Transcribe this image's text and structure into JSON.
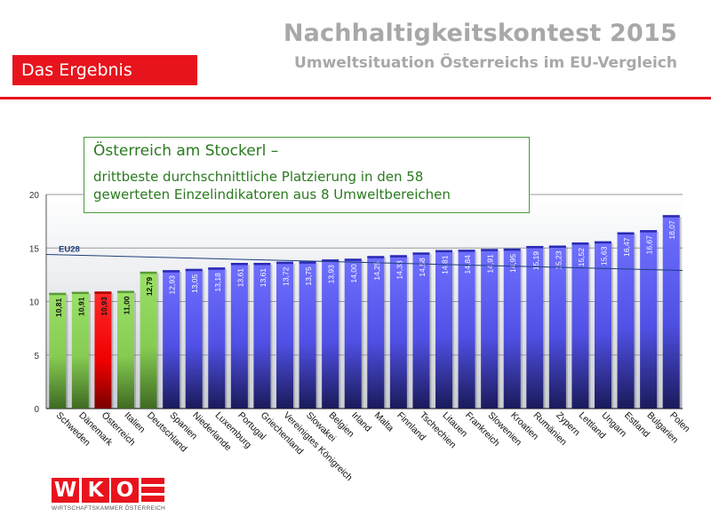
{
  "header": {
    "title": "Nachhaltigkeitskontest 2015",
    "subtitle": "Umweltsituation Österreichs im EU-Vergleich",
    "badge": "Das Ergebnis"
  },
  "callout": {
    "title": "Österreich am Stockerl –",
    "body_line1": "drittbeste durchschnittliche Platzierung in den 58",
    "body_line2": "gewerteten Einzelindikatoren aus 8 Umweltbereichen"
  },
  "logo": {
    "letters": [
      "W",
      "K",
      "O"
    ],
    "caption": "WIRTSCHAFTSKAMMER ÖSTERREICH"
  },
  "colors": {
    "accent_red": "#e8141d",
    "bar_green": "#8bd35a",
    "bar_red": "#ff0000",
    "bar_blue": "#5a5af0",
    "callout_green": "#2a7a1f"
  },
  "chart_data": {
    "type": "bar",
    "ylim": [
      0,
      20
    ],
    "yticks": [
      0,
      5,
      10,
      15,
      20
    ],
    "grid": true,
    "reference_line": {
      "label": "EU28",
      "value": 13.9
    },
    "categories": [
      "Schweden",
      "Dänemark",
      "Österreich",
      "Italien",
      "Deutschland",
      "Spanien",
      "Niederlande",
      "Luxemburg",
      "Portugal",
      "Griechenland",
      "Vereinigtes Königreich",
      "Slowakei",
      "Belgien",
      "Irland",
      "Malta",
      "Finnland",
      "Tschechien",
      "Litauen",
      "Frankreich",
      "Slowenien",
      "Kroatien",
      "Rumänien",
      "Zypern",
      "Lettland",
      "Ungarn",
      "Estland",
      "Bulgarien",
      "Polen"
    ],
    "values": [
      10.81,
      10.91,
      10.93,
      11.0,
      12.79,
      12.93,
      13.05,
      13.18,
      13.61,
      13.61,
      13.72,
      13.75,
      13.93,
      14.0,
      14.25,
      14.33,
      14.58,
      14.81,
      14.84,
      14.91,
      14.95,
      15.19,
      15.23,
      15.52,
      15.63,
      16.47,
      16.67,
      18.07
    ],
    "value_labels": [
      "10,81",
      "10,91",
      "10,93",
      "11,00",
      "12,79",
      "12,93",
      "13,05",
      "13,18",
      "13,61",
      "13,61",
      "13,72",
      "13,75",
      "13,93",
      "14,00",
      "14,25",
      "14,33",
      "14,58",
      "14,81",
      "14,84",
      "14,91",
      "14,95",
      "15,19",
      "15,23",
      "15,52",
      "15,63",
      "16,47",
      "16,67",
      "18,07"
    ],
    "bar_colors": [
      "green",
      "green",
      "red",
      "green",
      "green",
      "blue",
      "blue",
      "blue",
      "blue",
      "blue",
      "blue",
      "blue",
      "blue",
      "blue",
      "blue",
      "blue",
      "blue",
      "blue",
      "blue",
      "blue",
      "blue",
      "blue",
      "blue",
      "blue",
      "blue",
      "blue",
      "blue",
      "blue"
    ]
  }
}
